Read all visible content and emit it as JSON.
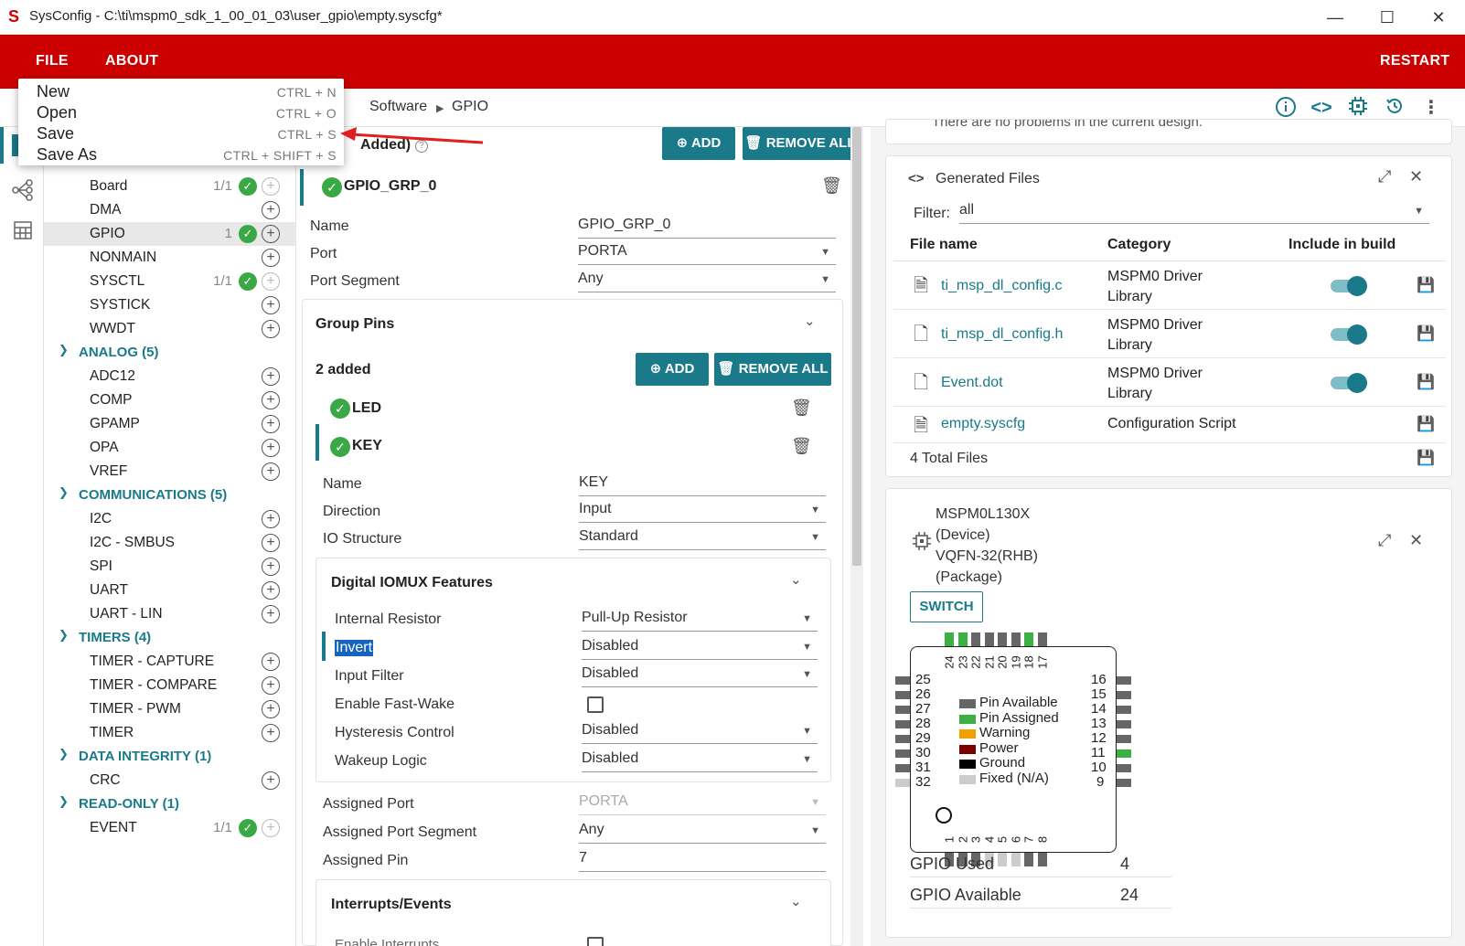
{
  "window": {
    "title": "SysConfig - C:\\ti\\mspm0_sdk_1_00_01_03\\user_gpio\\empty.syscfg*",
    "minimize": "—",
    "maximize": "☐",
    "close": "✕"
  },
  "menubar": {
    "file": "FILE",
    "about": "ABOUT",
    "restart": "RESTART"
  },
  "file_menu": [
    {
      "label": "New",
      "shortcut": "CTRL + N"
    },
    {
      "label": "Open",
      "shortcut": "CTRL + O"
    },
    {
      "label": "Save",
      "shortcut": "CTRL + S"
    },
    {
      "label": "Save As",
      "shortcut": "CTRL + SHIFT + S"
    }
  ],
  "breadcrumb": {
    "software": "Software",
    "gpio": "GPIO"
  },
  "tree": {
    "items_top": [
      {
        "label": "Board",
        "count": "1/1",
        "checked": true
      },
      {
        "label": "DMA",
        "count": "",
        "checked": false
      },
      {
        "label": "GPIO",
        "count": "1",
        "checked": true
      },
      {
        "label": "NONMAIN",
        "count": "",
        "checked": false
      },
      {
        "label": "SYSCTL",
        "count": "1/1",
        "checked": true
      },
      {
        "label": "SYSTICK",
        "count": "",
        "checked": false
      },
      {
        "label": "WWDT",
        "count": "",
        "checked": false
      }
    ],
    "analog": {
      "title": "ANALOG (5)",
      "items": [
        "ADC12",
        "COMP",
        "GPAMP",
        "OPA",
        "VREF"
      ]
    },
    "comms": {
      "title": "COMMUNICATIONS (5)",
      "items": [
        "I2C",
        "I2C - SMBUS",
        "SPI",
        "UART",
        "UART - LIN"
      ]
    },
    "timers": {
      "title": "TIMERS (4)",
      "items": [
        "TIMER - CAPTURE",
        "TIMER - COMPARE",
        "TIMER - PWM",
        "TIMER"
      ]
    },
    "integrity": {
      "title": "DATA INTEGRITY (1)",
      "items": [
        "CRC"
      ]
    },
    "readonly": {
      "title": "READ-ONLY (1)",
      "item": "EVENT",
      "count": "1/1"
    }
  },
  "center": {
    "added_header": "Added)",
    "add_label": "ADD",
    "remove_all_label": "REMOVE ALL",
    "group_name": "GPIO_GRP_0",
    "name_label": "Name",
    "name_value": "GPIO_GRP_0",
    "port_label": "Port",
    "port_value": "PORTA",
    "port_segment_label": "Port Segment",
    "port_segment_value": "Any",
    "group_pins_title": "Group Pins",
    "pins_added": "2 added",
    "pins": [
      "LED",
      "KEY"
    ],
    "pin_name_label": "Name",
    "pin_name_value": "KEY",
    "direction_label": "Direction",
    "direction_value": "Input",
    "io_structure_label": "IO Structure",
    "io_structure_value": "Standard",
    "iomux_title": "Digital IOMUX Features",
    "internal_resistor_label": "Internal Resistor",
    "internal_resistor_value": "Pull-Up Resistor",
    "invert_label": "Invert",
    "invert_value": "Disabled",
    "input_filter_label": "Input Filter",
    "input_filter_value": "Disabled",
    "fast_wake_label": "Enable Fast-Wake",
    "hysteresis_label": "Hysteresis Control",
    "hysteresis_value": "Disabled",
    "wakeup_label": "Wakeup Logic",
    "wakeup_value": "Disabled",
    "assigned_port_label": "Assigned Port",
    "assigned_port_value": "PORTA",
    "assigned_segment_label": "Assigned Port Segment",
    "assigned_segment_value": "Any",
    "assigned_pin_label": "Assigned Pin",
    "assigned_pin_value": "7",
    "interrupts_title": "Interrupts/Events",
    "enable_interrupts_label": "Enable Interrupts"
  },
  "problems": {
    "text": "There are no problems in the current design."
  },
  "generated": {
    "title": "Generated Files",
    "filter_label": "Filter:",
    "filter_value": "all",
    "col_file": "File name",
    "col_category": "Category",
    "col_include": "Include in build",
    "files": [
      {
        "name": "ti_msp_dl_config.c",
        "cat1": "MSPM0 Driver",
        "cat2": "Library"
      },
      {
        "name": "ti_msp_dl_config.h",
        "cat1": "MSPM0 Driver",
        "cat2": "Library"
      },
      {
        "name": "Event.dot",
        "cat1": "MSPM0 Driver",
        "cat2": "Library"
      },
      {
        "name": "empty.syscfg",
        "cat1": "Configuration Script",
        "cat2": ""
      }
    ],
    "total": "4 Total Files"
  },
  "device": {
    "line1": "MSPM0L130X",
    "line2": "(Device)",
    "line3": "VQFN-32(RHB)",
    "line4": "(Package)",
    "switch": "SWITCH",
    "top_pins": [
      "24",
      "23",
      "22",
      "21",
      "20",
      "19",
      "18",
      "17"
    ],
    "bottom_pins": [
      "1",
      "2",
      "3",
      "4",
      "5",
      "6",
      "7",
      "8"
    ],
    "left_pins": [
      "25",
      "26",
      "27",
      "28",
      "29",
      "30",
      "31",
      "32"
    ],
    "right_pins": [
      "16",
      "15",
      "14",
      "13",
      "12",
      "11",
      "10",
      "9"
    ],
    "legend": [
      {
        "label": "Pin Available",
        "color": "#666666"
      },
      {
        "label": "Pin Assigned",
        "color": "#3cb043"
      },
      {
        "label": "Warning",
        "color": "#f0a000"
      },
      {
        "label": "Power",
        "color": "#7a0000"
      },
      {
        "label": "Ground",
        "color": "#000000"
      },
      {
        "label": "Fixed (N/A)",
        "color": "#cccccc"
      }
    ],
    "gpio_used_label": "GPIO Used",
    "gpio_used_value": "4",
    "gpio_avail_label": "GPIO Available",
    "gpio_avail_value": "24"
  },
  "colors": {
    "accent": "#1a7a8a",
    "header": "#cc0000",
    "check": "#3aa845"
  }
}
